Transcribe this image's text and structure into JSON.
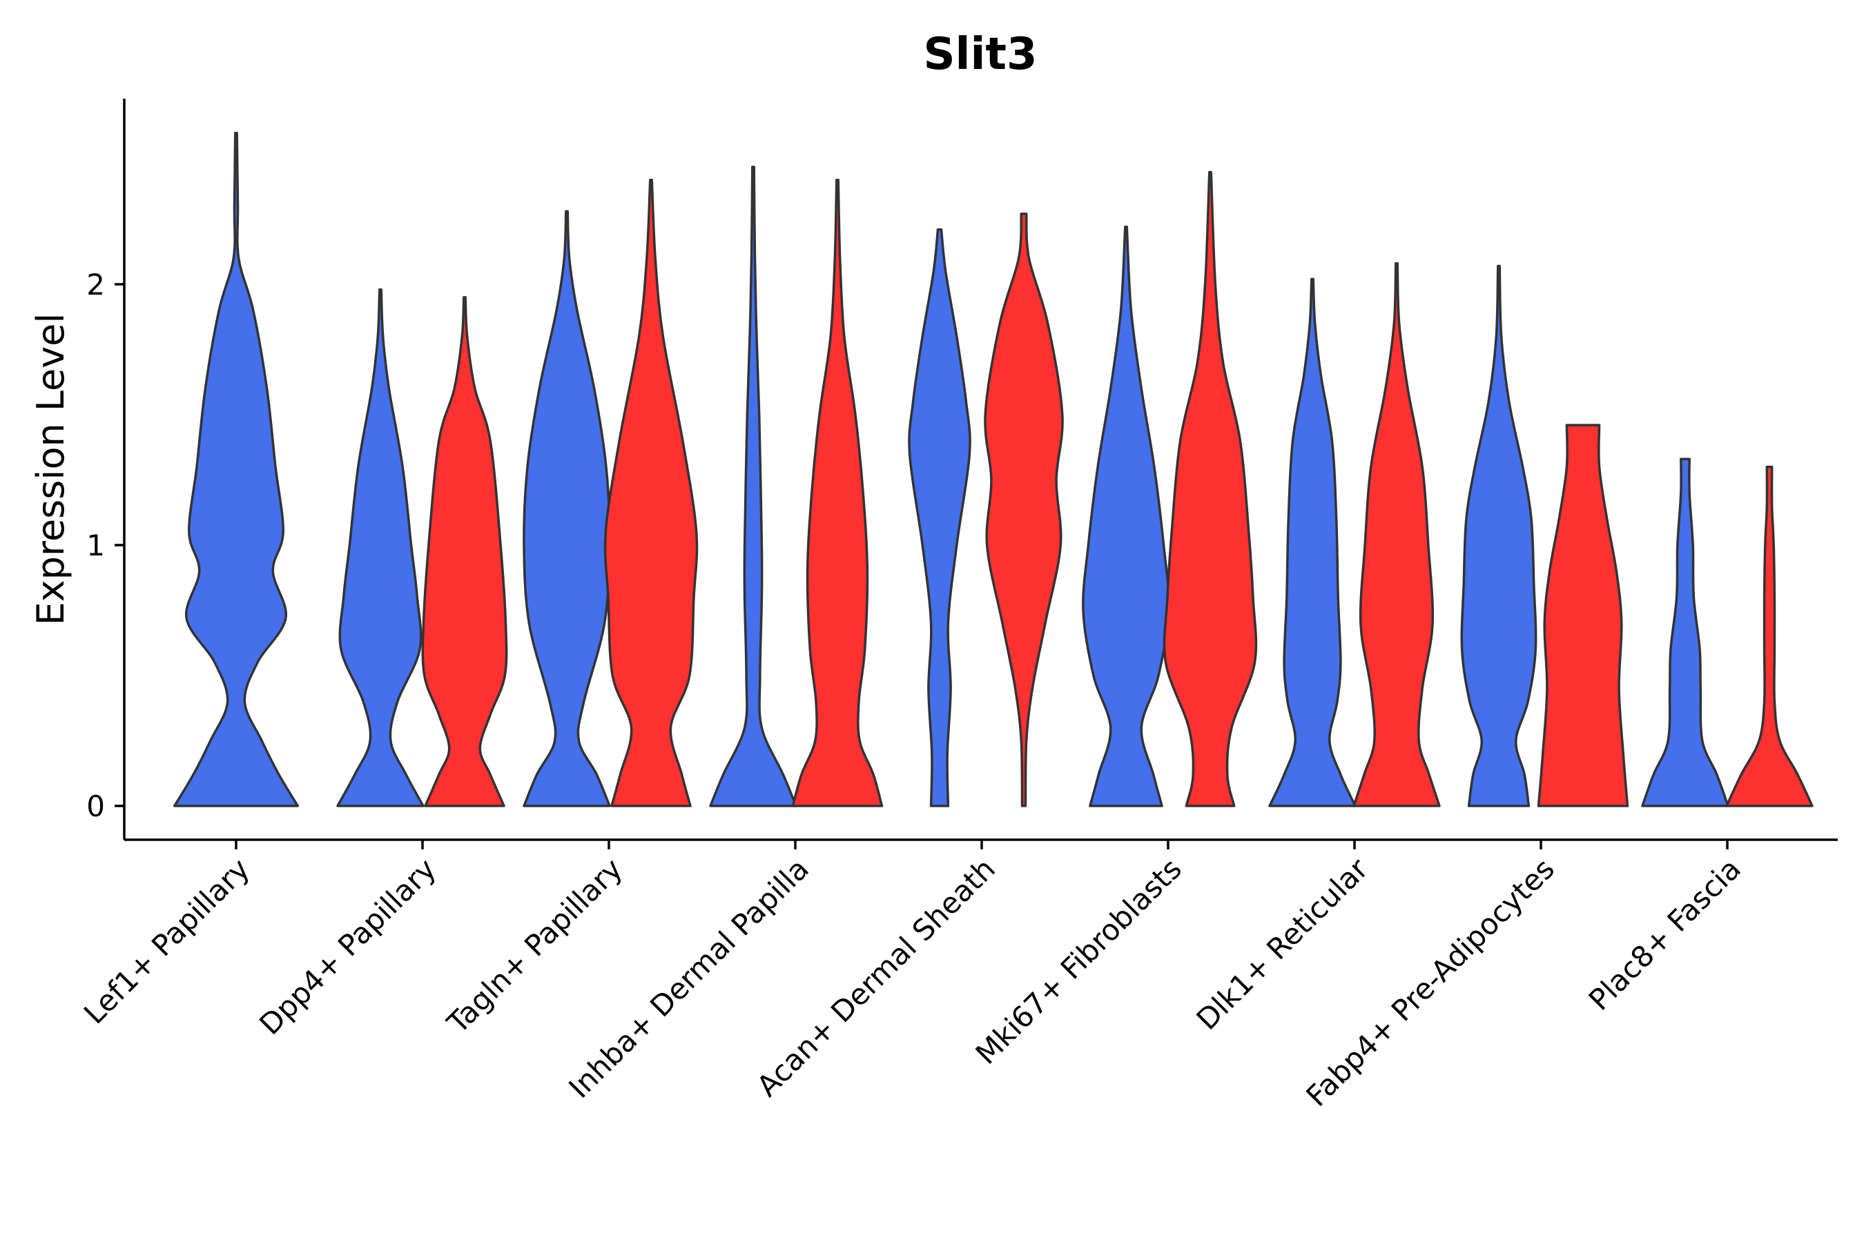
{
  "chart_data": {
    "type": "violin",
    "title": "Slit3",
    "xlabel": "",
    "ylabel": "Expression Level",
    "ylim": [
      -0.13,
      2.72
    ],
    "yticks": [
      0,
      1,
      2
    ],
    "categories": [
      "Lef1+ Papillary",
      "Dpp4+ Papillary",
      "Tagln+ Papillary",
      "Inhba+ Dermal Papilla",
      "Acan+ Dermal Sheath",
      "Mki67+ Fibroblasts",
      "Dlk1+ Reticular",
      "Fabp4+ Pre-Adipocytes",
      "Plac8+ Fascia"
    ],
    "colors": {
      "blue": "#4470EC",
      "red": "#FF3131"
    },
    "violins": [
      {
        "category": "Lef1+ Papillary",
        "color": "blue",
        "max": 2.58,
        "profile": [
          [
            0,
            0.72
          ],
          [
            0.12,
            0.5
          ],
          [
            0.25,
            0.3
          ],
          [
            0.4,
            0.1
          ],
          [
            0.55,
            0.25
          ],
          [
            0.72,
            0.58
          ],
          [
            0.9,
            0.43
          ],
          [
            1.05,
            0.55
          ],
          [
            1.3,
            0.46
          ],
          [
            1.6,
            0.36
          ],
          [
            1.9,
            0.2
          ],
          [
            2.1,
            0.03
          ],
          [
            2.3,
            0.02
          ],
          [
            2.58,
            0.01
          ]
        ]
      },
      {
        "category": "Dpp4+ Papillary",
        "color": "blue",
        "max": 1.98,
        "profile": [
          [
            0,
            0.5
          ],
          [
            0.12,
            0.3
          ],
          [
            0.25,
            0.12
          ],
          [
            0.4,
            0.2
          ],
          [
            0.6,
            0.46
          ],
          [
            0.8,
            0.43
          ],
          [
            1.0,
            0.36
          ],
          [
            1.3,
            0.26
          ],
          [
            1.6,
            0.1
          ],
          [
            1.8,
            0.03
          ],
          [
            1.98,
            0.01
          ]
        ]
      },
      {
        "category": "Dpp4+ Papillary",
        "color": "red",
        "max": 1.95,
        "profile": [
          [
            0,
            0.46
          ],
          [
            0.12,
            0.3
          ],
          [
            0.22,
            0.18
          ],
          [
            0.35,
            0.3
          ],
          [
            0.5,
            0.47
          ],
          [
            0.7,
            0.48
          ],
          [
            1.0,
            0.42
          ],
          [
            1.4,
            0.3
          ],
          [
            1.6,
            0.12
          ],
          [
            1.8,
            0.03
          ],
          [
            1.95,
            0.01
          ]
        ]
      },
      {
        "category": "Tagln+ Papillary",
        "color": "blue",
        "max": 2.28,
        "profile": [
          [
            0,
            0.5
          ],
          [
            0.12,
            0.35
          ],
          [
            0.25,
            0.14
          ],
          [
            0.4,
            0.2
          ],
          [
            0.7,
            0.44
          ],
          [
            1.0,
            0.5
          ],
          [
            1.3,
            0.46
          ],
          [
            1.6,
            0.32
          ],
          [
            1.9,
            0.12
          ],
          [
            2.1,
            0.03
          ],
          [
            2.28,
            0.01
          ]
        ]
      },
      {
        "category": "Tagln+ Papillary",
        "color": "red",
        "max": 2.4,
        "profile": [
          [
            0,
            0.46
          ],
          [
            0.12,
            0.36
          ],
          [
            0.3,
            0.23
          ],
          [
            0.5,
            0.45
          ],
          [
            0.8,
            0.5
          ],
          [
            1.05,
            0.53
          ],
          [
            1.4,
            0.37
          ],
          [
            1.8,
            0.14
          ],
          [
            2.1,
            0.05
          ],
          [
            2.4,
            0.01
          ]
        ]
      },
      {
        "category": "Inhba+ Dermal Papilla",
        "color": "blue",
        "max": 2.45,
        "profile": [
          [
            0,
            0.5
          ],
          [
            0.12,
            0.35
          ],
          [
            0.3,
            0.1
          ],
          [
            0.5,
            0.08
          ],
          [
            0.8,
            0.1
          ],
          [
            1.0,
            0.1
          ],
          [
            1.5,
            0.07
          ],
          [
            1.8,
            0.04
          ],
          [
            2.1,
            0.02
          ],
          [
            2.45,
            0.01
          ]
        ]
      },
      {
        "category": "Inhba+ Dermal Papilla",
        "color": "red",
        "max": 2.4,
        "profile": [
          [
            0,
            0.52
          ],
          [
            0.12,
            0.42
          ],
          [
            0.25,
            0.26
          ],
          [
            0.4,
            0.25
          ],
          [
            0.6,
            0.32
          ],
          [
            0.9,
            0.35
          ],
          [
            1.2,
            0.3
          ],
          [
            1.5,
            0.21
          ],
          [
            1.8,
            0.08
          ],
          [
            2.1,
            0.03
          ],
          [
            2.4,
            0.01
          ]
        ]
      },
      {
        "category": "Acan+ Dermal Sheath",
        "color": "blue",
        "max": 2.21,
        "profile": [
          [
            0,
            0.1
          ],
          [
            0.2,
            0.09
          ],
          [
            0.45,
            0.13
          ],
          [
            0.7,
            0.1
          ],
          [
            1.0,
            0.2
          ],
          [
            1.35,
            0.35
          ],
          [
            1.55,
            0.31
          ],
          [
            1.8,
            0.2
          ],
          [
            2.05,
            0.07
          ],
          [
            2.21,
            0.02
          ]
        ]
      },
      {
        "category": "Acan+ Dermal Sheath",
        "color": "red",
        "max": 2.27,
        "profile": [
          [
            0,
            0.02
          ],
          [
            0.25,
            0.03
          ],
          [
            0.45,
            0.1
          ],
          [
            0.7,
            0.25
          ],
          [
            1.0,
            0.43
          ],
          [
            1.25,
            0.38
          ],
          [
            1.5,
            0.45
          ],
          [
            1.85,
            0.28
          ],
          [
            2.1,
            0.06
          ],
          [
            2.27,
            0.03
          ]
        ]
      },
      {
        "category": "Mki67+ Fibroblasts",
        "color": "blue",
        "max": 2.22,
        "profile": [
          [
            0,
            0.42
          ],
          [
            0.12,
            0.32
          ],
          [
            0.3,
            0.18
          ],
          [
            0.5,
            0.38
          ],
          [
            0.75,
            0.5
          ],
          [
            1.0,
            0.44
          ],
          [
            1.3,
            0.33
          ],
          [
            1.6,
            0.18
          ],
          [
            1.9,
            0.06
          ],
          [
            2.22,
            0.01
          ]
        ]
      },
      {
        "category": "Mki67+ Fibroblasts",
        "color": "red",
        "max": 2.43,
        "profile": [
          [
            0,
            0.28
          ],
          [
            0.12,
            0.2
          ],
          [
            0.3,
            0.25
          ],
          [
            0.55,
            0.52
          ],
          [
            0.8,
            0.5
          ],
          [
            1.05,
            0.45
          ],
          [
            1.4,
            0.35
          ],
          [
            1.7,
            0.15
          ],
          [
            2.0,
            0.06
          ],
          [
            2.43,
            0.01
          ]
        ]
      },
      {
        "category": "Dlk1+ Reticular",
        "color": "blue",
        "max": 2.02,
        "profile": [
          [
            0,
            0.5
          ],
          [
            0.12,
            0.33
          ],
          [
            0.25,
            0.2
          ],
          [
            0.4,
            0.29
          ],
          [
            0.55,
            0.33
          ],
          [
            0.8,
            0.3
          ],
          [
            1.1,
            0.28
          ],
          [
            1.4,
            0.23
          ],
          [
            1.65,
            0.1
          ],
          [
            1.85,
            0.03
          ],
          [
            2.02,
            0.01
          ]
        ]
      },
      {
        "category": "Dlk1+ Reticular",
        "color": "red",
        "max": 2.08,
        "profile": [
          [
            0,
            0.5
          ],
          [
            0.12,
            0.38
          ],
          [
            0.25,
            0.26
          ],
          [
            0.45,
            0.3
          ],
          [
            0.7,
            0.42
          ],
          [
            1.0,
            0.37
          ],
          [
            1.3,
            0.3
          ],
          [
            1.6,
            0.13
          ],
          [
            1.85,
            0.03
          ],
          [
            2.08,
            0.01
          ]
        ]
      },
      {
        "category": "Fabp4+ Pre-Adipocytes",
        "color": "blue",
        "max": 2.07,
        "profile": [
          [
            0,
            0.35
          ],
          [
            0.12,
            0.3
          ],
          [
            0.25,
            0.2
          ],
          [
            0.4,
            0.34
          ],
          [
            0.6,
            0.43
          ],
          [
            0.85,
            0.41
          ],
          [
            1.1,
            0.38
          ],
          [
            1.3,
            0.28
          ],
          [
            1.55,
            0.12
          ],
          [
            1.8,
            0.03
          ],
          [
            2.07,
            0.01
          ]
        ]
      },
      {
        "category": "Fabp4+ Pre-Adipocytes",
        "color": "red",
        "max": 1.46,
        "profile": [
          [
            0,
            0.52
          ],
          [
            0.2,
            0.47
          ],
          [
            0.45,
            0.42
          ],
          [
            0.7,
            0.45
          ],
          [
            0.9,
            0.39
          ],
          [
            1.1,
            0.28
          ],
          [
            1.3,
            0.19
          ],
          [
            1.46,
            0.19
          ]
        ]
      },
      {
        "category": "Plac8+ Fascia",
        "color": "blue",
        "max": 1.33,
        "profile": [
          [
            0,
            0.5
          ],
          [
            0.12,
            0.37
          ],
          [
            0.25,
            0.2
          ],
          [
            0.45,
            0.18
          ],
          [
            0.6,
            0.17
          ],
          [
            0.8,
            0.1
          ],
          [
            1.0,
            0.09
          ],
          [
            1.2,
            0.05
          ],
          [
            1.33,
            0.05
          ]
        ]
      },
      {
        "category": "Plac8+ Fascia",
        "color": "red",
        "max": 1.3,
        "profile": [
          [
            0,
            0.5
          ],
          [
            0.12,
            0.33
          ],
          [
            0.25,
            0.12
          ],
          [
            0.4,
            0.06
          ],
          [
            0.6,
            0.06
          ],
          [
            0.8,
            0.06
          ],
          [
            1.0,
            0.05
          ],
          [
            1.15,
            0.03
          ],
          [
            1.3,
            0.03
          ]
        ]
      }
    ]
  }
}
